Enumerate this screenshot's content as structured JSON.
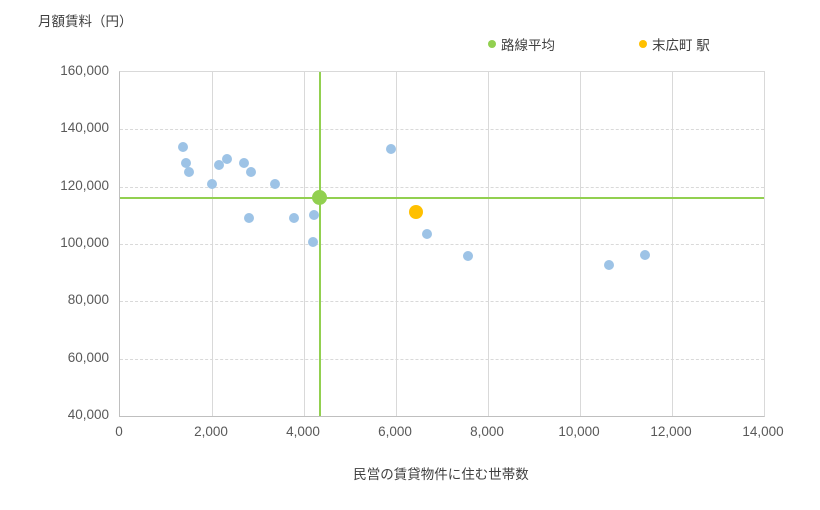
{
  "chart_data": {
    "type": "scatter",
    "title": "",
    "xlabel": "民営の賃貸物件に住む世帯数",
    "ylabel": "月額賃料（円）",
    "xlim": [
      0,
      14000
    ],
    "ylim": [
      40000,
      160000
    ],
    "x_ticks": [
      0,
      2000,
      4000,
      6000,
      8000,
      10000,
      12000,
      14000
    ],
    "y_ticks": [
      40000,
      60000,
      80000,
      100000,
      120000,
      140000,
      160000
    ],
    "x_tick_labels": [
      "0",
      "2,000",
      "4,000",
      "6,000",
      "8,000",
      "10,000",
      "12,000",
      "14,000"
    ],
    "y_tick_labels": [
      "40,000",
      "60,000",
      "80,000",
      "100,000",
      "120,000",
      "140,000",
      "160,000"
    ],
    "grid": true,
    "legend_position": "top",
    "series": [
      {
        "name": "",
        "role": "stations",
        "color": "#9DC3E6",
        "marker_size": 10,
        "crosshair": false,
        "points": [
          [
            1370,
            133700
          ],
          [
            1430,
            128200
          ],
          [
            1500,
            125100
          ],
          [
            2000,
            121000
          ],
          [
            2160,
            127700
          ],
          [
            2330,
            129800
          ],
          [
            2700,
            128200
          ],
          [
            2850,
            125100
          ],
          [
            3380,
            120900
          ],
          [
            2800,
            109200
          ],
          [
            3790,
            109200
          ],
          [
            4220,
            110000
          ],
          [
            4200,
            100800
          ],
          [
            5900,
            133000
          ],
          [
            6680,
            103400
          ],
          [
            7570,
            95900
          ],
          [
            10620,
            92800
          ],
          [
            11420,
            96300
          ]
        ]
      },
      {
        "name": "路線平均",
        "role": "line-average",
        "color": "#92D050",
        "marker_size": 15,
        "crosshair": true,
        "points": [
          [
            4340,
            116200
          ]
        ]
      },
      {
        "name": "末広町 駅",
        "role": "suehirocho-station",
        "color": "#FFC000",
        "marker_size": 14,
        "crosshair": false,
        "points": [
          [
            6430,
            111000
          ]
        ]
      }
    ]
  },
  "legend": [
    {
      "label": "路線平均",
      "color": "#92D050"
    },
    {
      "label": "末広町 駅",
      "color": "#FFC000"
    }
  ]
}
